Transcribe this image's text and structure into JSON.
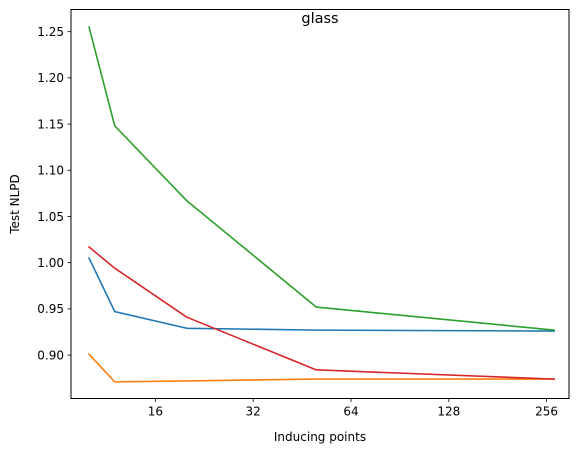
{
  "chart_data": {
    "type": "line",
    "title": "glass",
    "xlabel": "Inducing points",
    "ylabel": "Test NLPD",
    "xscale": "log2",
    "xlim": [
      8.8,
      300
    ],
    "ylim": [
      0.853,
      1.274
    ],
    "xticks": [
      16,
      32,
      64,
      128,
      256
    ],
    "xtick_labels": [
      "16",
      "32",
      "64",
      "128",
      "256"
    ],
    "yticks": [
      0.9,
      0.95,
      1.0,
      1.05,
      1.1,
      1.15,
      1.2,
      1.25
    ],
    "ytick_labels": [
      "0.90",
      "0.95",
      "1.00",
      "1.05",
      "1.10",
      "1.15",
      "1.20",
      "1.25"
    ],
    "grid": false,
    "legend": "none",
    "series": [
      {
        "color": "#1f77b4",
        "x": [
          10,
          12,
          20,
          50,
          270
        ],
        "y": [
          1.005,
          0.947,
          0.929,
          0.927,
          0.926
        ]
      },
      {
        "color": "#ff7f0e",
        "x": [
          10,
          12,
          20,
          50,
          270
        ],
        "y": [
          0.901,
          0.871,
          0.872,
          0.874,
          0.874
        ]
      },
      {
        "color": "#2ca02c",
        "x": [
          10,
          12,
          20,
          50,
          270
        ],
        "y": [
          1.255,
          1.148,
          1.067,
          0.952,
          0.927
        ]
      },
      {
        "color": "#d62728",
        "x": [
          10,
          12,
          20,
          50,
          270
        ],
        "y": [
          1.017,
          0.994,
          0.941,
          0.884,
          0.874
        ]
      }
    ]
  }
}
